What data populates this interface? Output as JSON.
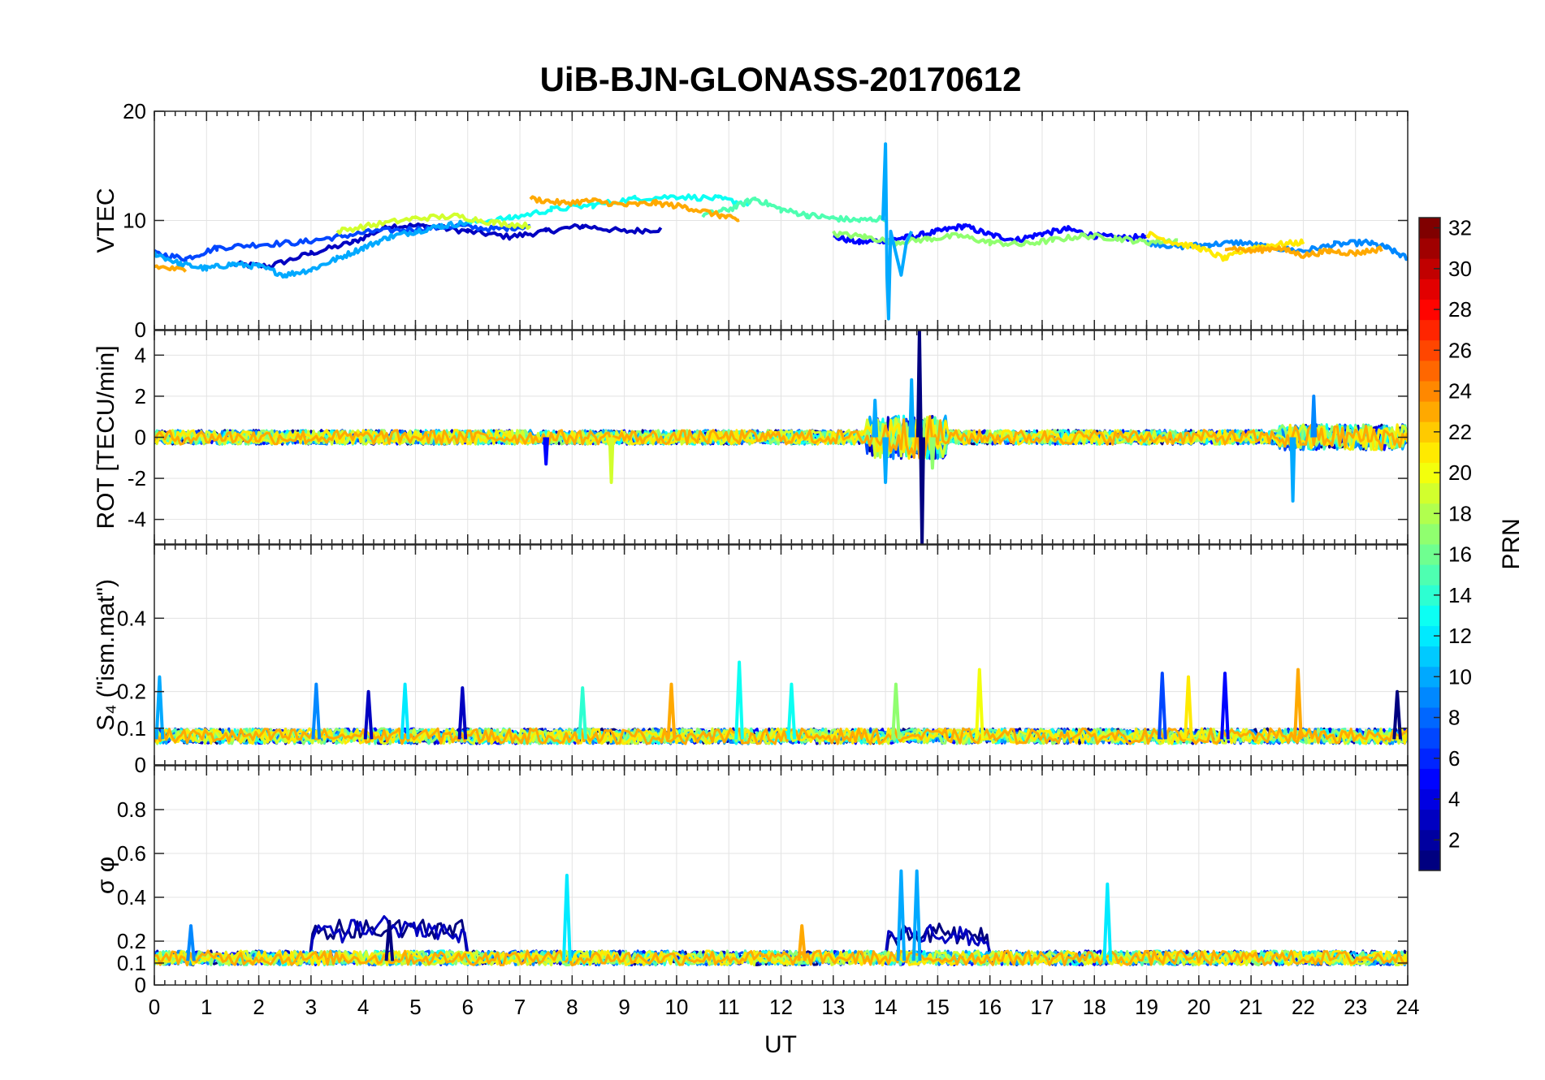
{
  "chart_data": {
    "type": "line",
    "title": "UiB-BJN-GLONASS-20170612",
    "xlabel": "UT",
    "xlim": [
      0,
      24
    ],
    "x_ticks": [
      "0",
      "1",
      "2",
      "3",
      "4",
      "5",
      "6",
      "7",
      "8",
      "9",
      "10",
      "11",
      "12",
      "13",
      "14",
      "15",
      "16",
      "17",
      "18",
      "19",
      "20",
      "21",
      "22",
      "23",
      "24"
    ],
    "grid": true,
    "colormap": "jet",
    "colorbar": {
      "label": "PRN",
      "range": [
        1,
        32
      ],
      "ticks": [
        "2",
        "4",
        "6",
        "8",
        "10",
        "12",
        "14",
        "16",
        "18",
        "20",
        "22",
        "24",
        "26",
        "28",
        "30",
        "32"
      ]
    },
    "series_note_prn": [
      1,
      3,
      5,
      7,
      9,
      10,
      13,
      15,
      17,
      19,
      21,
      23
    ],
    "panels": [
      {
        "ylabel": "VTEC",
        "ylim": [
          0,
          20
        ],
        "yticks": [
          "0",
          "10",
          "20"
        ],
        "series": [
          {
            "prn": 3,
            "x": [
              1.5,
              2.2,
              3,
              3.8,
              4.5,
              5.2,
              6,
              6.8,
              7.5,
              8.2,
              9,
              9.7
            ],
            "y": [
              6.0,
              5.8,
              7.0,
              8.0,
              9.5,
              9.5,
              9.0,
              8.5,
              9.0,
              9.5,
              9.0,
              9.2
            ]
          },
          {
            "prn": 5,
            "x": [
              13,
              13.5,
              14,
              14.5,
              15,
              15.5,
              16,
              16.5,
              17,
              17.5,
              18,
              18.5,
              19
            ],
            "y": [
              8.5,
              8.0,
              8.2,
              8.5,
              9.0,
              9.5,
              8.7,
              8.2,
              8.8,
              9.2,
              8.6,
              8.4,
              8.5
            ]
          },
          {
            "prn": 7,
            "x": [
              0,
              0.6,
              1.2,
              2,
              2.8,
              3.5,
              4.2,
              5,
              5.8,
              6.5,
              7.2
            ],
            "y": [
              7.0,
              6.5,
              7.5,
              7.8,
              8.0,
              8.5,
              9.0,
              9.2,
              9.5,
              9.2,
              9.5
            ]
          },
          {
            "prn": 9,
            "x": [
              19,
              19.6,
              20.2,
              20.8,
              21.4,
              22,
              22.6,
              23.2,
              23.6,
              24
            ],
            "y": [
              8.0,
              7.6,
              7.8,
              8.0,
              7.5,
              7.2,
              7.8,
              8.0,
              7.5,
              6.5
            ]
          },
          {
            "prn": 10,
            "x": [
              0,
              0.5,
              1,
              1.5,
              2,
              2.5,
              3,
              3.5,
              4,
              4.5,
              5,
              5.5,
              6
            ],
            "y": [
              7.0,
              6.0,
              5.6,
              6.0,
              5.8,
              5.0,
              5.5,
              6.5,
              7.5,
              8.5,
              9.0,
              9.5,
              9.8
            ]
          },
          {
            "prn": 13,
            "x": [
              6,
              6.8,
              7.6,
              8.4,
              9.2,
              10,
              10.8,
              11.4
            ],
            "y": [
              9.8,
              10.2,
              11.0,
              11.4,
              12.0,
              12.2,
              12.0,
              11.5
            ]
          },
          {
            "prn": 15,
            "x": [
              10.5,
              11,
              11.5,
              12,
              12.5,
              13,
              13.5,
              14
            ],
            "y": [
              10.5,
              11.0,
              12.0,
              11.0,
              10.5,
              10.2,
              10.0,
              10.2
            ]
          },
          {
            "prn": 17,
            "x": [
              13,
              13.6,
              14.2,
              14.8,
              15.4,
              16,
              16.6,
              17.2,
              17.8,
              18.4,
              19,
              19.6
            ],
            "y": [
              8.8,
              8.5,
              8.0,
              8.3,
              8.6,
              8.0,
              7.8,
              8.2,
              8.6,
              8.4,
              8.0,
              8.2
            ]
          },
          {
            "prn": 19,
            "x": [
              3.5,
              4.2,
              5,
              5.8,
              6.5,
              7.2
            ],
            "y": [
              9.0,
              9.6,
              10.2,
              10.4,
              9.8,
              9.5
            ]
          },
          {
            "prn": 21,
            "x": [
              19,
              19.5,
              20,
              20.5,
              21,
              21.5,
              22
            ],
            "y": [
              8.8,
              8.0,
              7.5,
              6.5,
              7.5,
              7.8,
              8.0
            ]
          },
          {
            "prn": 23,
            "x": [
              7.2,
              7.8,
              8.4,
              9,
              9.6,
              10.2,
              10.8,
              11.2
            ],
            "y": [
              12.0,
              11.6,
              11.8,
              11.4,
              11.6,
              11.2,
              10.5,
              10.0
            ]
          },
          {
            "prn": 23,
            "x": [
              0,
              0.6
            ],
            "y": [
              5.8,
              5.4
            ]
          },
          {
            "prn": 23,
            "x": [
              20.5,
              21,
              21.5,
              22,
              22.5,
              23,
              23.5
            ],
            "y": [
              7.6,
              7.2,
              7.5,
              6.8,
              7.2,
              7.0,
              7.4
            ]
          }
        ]
      },
      {
        "ylabel": "ROT [TECU/min]",
        "ylim": [
          -5.2,
          5.2
        ],
        "yticks": [
          "-4",
          "-2",
          "0",
          "2",
          "4"
        ],
        "noise_amplitude": 0.35,
        "spikes": [
          {
            "prn": 1,
            "x": 14.65,
            "y": 5.2
          },
          {
            "prn": 1,
            "x": 14.7,
            "y": -5.2
          },
          {
            "prn": 10,
            "x": 14.5,
            "y": 2.8
          },
          {
            "prn": 10,
            "x": 13.8,
            "y": 1.8
          },
          {
            "prn": 10,
            "x": 14.0,
            "y": -2.2
          },
          {
            "prn": 10,
            "x": 21.8,
            "y": -3.1
          },
          {
            "prn": 19,
            "x": 8.75,
            "y": -2.2
          },
          {
            "prn": 9,
            "x": 22.2,
            "y": 2.0
          },
          {
            "prn": 5,
            "x": 7.5,
            "y": -1.3
          },
          {
            "prn": 17,
            "x": 14.9,
            "y": -1.5
          }
        ]
      },
      {
        "ylabel": "S₄ (\"ism.mat\")",
        "ylim": [
          0,
          0.6
        ],
        "yticks": [
          "0",
          "0.1",
          "0.2",
          "0.4"
        ],
        "baseline": 0.07,
        "peaks": [
          {
            "prn": 10,
            "x": 0.1,
            "y": 0.24
          },
          {
            "prn": 9,
            "x": 3.1,
            "y": 0.22
          },
          {
            "prn": 3,
            "x": 4.1,
            "y": 0.2
          },
          {
            "prn": 12,
            "x": 4.8,
            "y": 0.22
          },
          {
            "prn": 3,
            "x": 5.9,
            "y": 0.21
          },
          {
            "prn": 14,
            "x": 8.2,
            "y": 0.21
          },
          {
            "prn": 23,
            "x": 9.9,
            "y": 0.22
          },
          {
            "prn": 13,
            "x": 11.2,
            "y": 0.28
          },
          {
            "prn": 13,
            "x": 12.2,
            "y": 0.22
          },
          {
            "prn": 17,
            "x": 14.2,
            "y": 0.22
          },
          {
            "prn": 20,
            "x": 15.8,
            "y": 0.26
          },
          {
            "prn": 7,
            "x": 19.3,
            "y": 0.25
          },
          {
            "prn": 21,
            "x": 19.8,
            "y": 0.24
          },
          {
            "prn": 5,
            "x": 20.5,
            "y": 0.25
          },
          {
            "prn": 23,
            "x": 21.9,
            "y": 0.26
          },
          {
            "prn": 1,
            "x": 23.8,
            "y": 0.2
          }
        ]
      },
      {
        "ylabel": "σ φ",
        "ylim": [
          0,
          1
        ],
        "yticks": [
          "0",
          "0.1",
          "0.2",
          "0.4",
          "0.6",
          "0.8"
        ],
        "baseline": 0.11,
        "peaks": [
          {
            "prn": 12,
            "x": 7.9,
            "y": 0.5
          },
          {
            "prn": 10,
            "x": 14.3,
            "y": 0.52
          },
          {
            "prn": 10,
            "x": 14.6,
            "y": 0.52
          },
          {
            "prn": 12,
            "x": 18.25,
            "y": 0.46
          },
          {
            "prn": 1,
            "x": 4.5,
            "y": 0.29
          },
          {
            "prn": 9,
            "x": 0.7,
            "y": 0.27
          },
          {
            "prn": 23,
            "x": 12.4,
            "y": 0.27
          }
        ]
      }
    ]
  }
}
